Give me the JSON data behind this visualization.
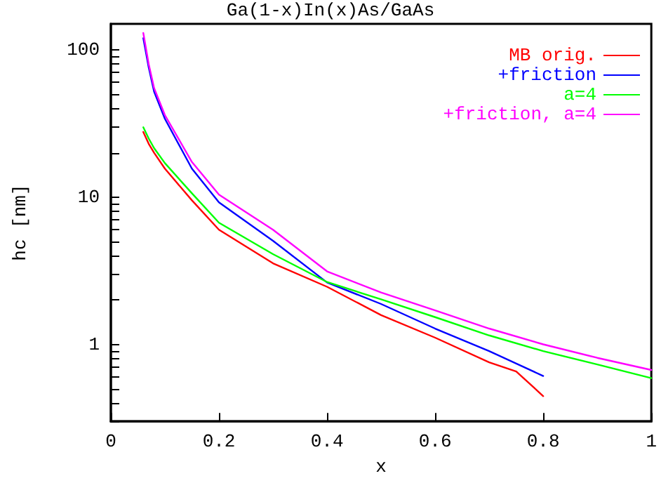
{
  "chart_data": {
    "type": "line",
    "title": "Ga(1-x)In(x)As/GaAs",
    "xlabel": "x",
    "ylabel": "hc [nm]",
    "log": "y",
    "grid": false,
    "legend": "top right",
    "marker": "none",
    "line_style": "solid",
    "xlim": [
      0,
      1
    ],
    "xticks": [
      0,
      0.2,
      0.4,
      0.6,
      0.8,
      1
    ],
    "ylim": [
      0.3,
      150
    ],
    "yticks": [
      {
        "value": 0.3,
        "label": null
      },
      {
        "value": 0.4,
        "label": null
      },
      {
        "value": 0.5,
        "label": null
      },
      {
        "value": 0.6,
        "label": null
      },
      {
        "value": 0.7,
        "label": null
      },
      {
        "value": 0.8,
        "label": null
      },
      {
        "value": 0.9,
        "label": null
      },
      1,
      {
        "value": 2,
        "label": null
      },
      {
        "value": 3,
        "label": null
      },
      {
        "value": 4,
        "label": null
      },
      {
        "value": 5,
        "label": null
      },
      {
        "value": 6,
        "label": null
      },
      {
        "value": 7,
        "label": null
      },
      {
        "value": 8,
        "label": null
      },
      {
        "value": 9,
        "label": null
      },
      10,
      {
        "value": 20,
        "label": null
      },
      {
        "value": 30,
        "label": null
      },
      {
        "value": 40,
        "label": null
      },
      {
        "value": 50,
        "label": null
      },
      {
        "value": 60,
        "label": null
      },
      {
        "value": 70,
        "label": null
      },
      {
        "value": 80,
        "label": null
      },
      {
        "value": 90,
        "label": null
      },
      100
    ],
    "series": [
      {
        "name": "MB orig.",
        "color": "#ff0000",
        "x": [
          0.06,
          0.07,
          0.08,
          0.1,
          0.15,
          0.2,
          0.3,
          0.4,
          0.5,
          0.6,
          0.7,
          0.75,
          0.8
        ],
        "values": [
          27.7,
          23,
          20,
          15.6,
          9.5,
          6.0,
          3.55,
          2.46,
          1.58,
          1.11,
          0.755,
          0.655,
          0.445
        ]
      },
      {
        "name": "+friction",
        "color": "#0000ff",
        "x": [
          0.06,
          0.07,
          0.08,
          0.1,
          0.15,
          0.2,
          0.3,
          0.4,
          0.5,
          0.6,
          0.7,
          0.8
        ],
        "values": [
          120,
          76,
          52,
          34,
          15.6,
          9.2,
          5.05,
          2.63,
          1.88,
          1.28,
          0.9,
          0.61
        ]
      },
      {
        "name": "a=4",
        "color": "#00ff00",
        "x": [
          0.06,
          0.07,
          0.08,
          0.1,
          0.15,
          0.2,
          0.3,
          0.4,
          0.5,
          0.6,
          0.7,
          0.8,
          0.9,
          1.0
        ],
        "values": [
          29.8,
          25,
          21.5,
          17,
          10.6,
          6.7,
          4.1,
          2.65,
          2.02,
          1.53,
          1.15,
          0.9,
          0.73,
          0.59
        ]
      },
      {
        "name": "+friction, a=4",
        "color": "#ff00ff",
        "x": [
          0.06,
          0.07,
          0.08,
          0.1,
          0.15,
          0.2,
          0.3,
          0.4,
          0.5,
          0.6,
          0.7,
          0.8,
          0.9,
          1.0
        ],
        "values": [
          130,
          80,
          55,
          36,
          17.3,
          10.4,
          6.0,
          3.13,
          2.25,
          1.7,
          1.28,
          1.0,
          0.81,
          0.67
        ]
      }
    ]
  }
}
